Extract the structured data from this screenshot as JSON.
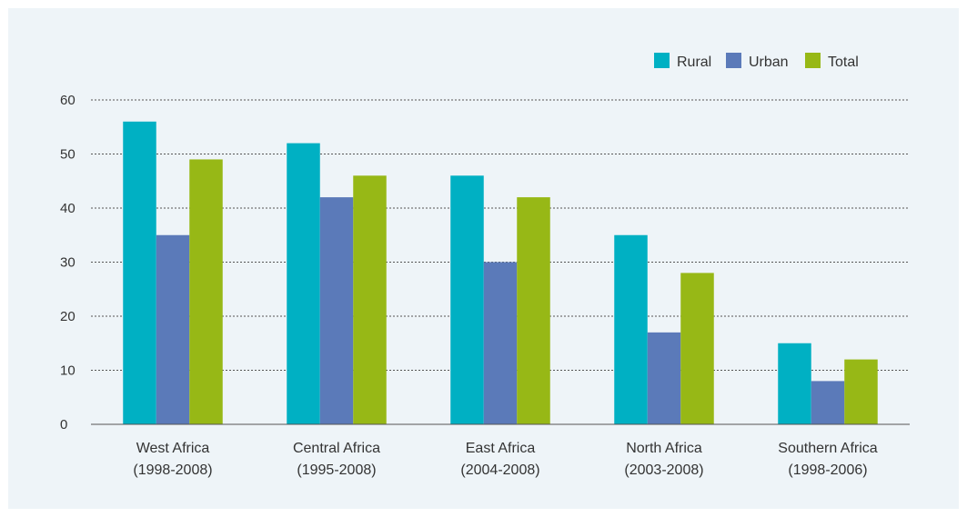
{
  "chart_data": {
    "type": "bar",
    "title": "",
    "xlabel": "",
    "ylabel": "",
    "categories": [
      [
        "West Africa",
        "(1998-2008)"
      ],
      [
        "Central Africa",
        "(1995-2008)"
      ],
      [
        "East Africa",
        "(2004-2008)"
      ],
      [
        "North Africa",
        "(2003-2008)"
      ],
      [
        "Southern Africa",
        "(1998-2006)"
      ]
    ],
    "series": [
      {
        "name": "Rural",
        "color": "#00b0c3",
        "values": [
          56,
          52,
          46,
          35,
          15
        ]
      },
      {
        "name": "Urban",
        "color": "#5b7ab9",
        "values": [
          35,
          42,
          30,
          17,
          8
        ]
      },
      {
        "name": "Total",
        "color": "#97b816",
        "values": [
          49,
          46,
          42,
          28,
          12
        ]
      }
    ],
    "ylim": [
      0,
      60
    ],
    "yticks": [
      0,
      10,
      20,
      30,
      40,
      50,
      60
    ],
    "grid": true,
    "grid_style": "dotted",
    "legend_position": "top-right",
    "colors": {
      "background": "#eef4f8",
      "gridline": "#555555",
      "axis": "#555555",
      "text": "#333333"
    }
  }
}
